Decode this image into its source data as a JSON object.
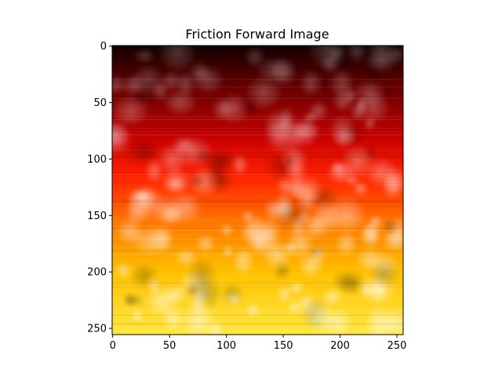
{
  "chart_data": {
    "type": "heatmap",
    "title": "Friction Forward Image",
    "xlabel": "",
    "ylabel": "",
    "colormap": "hot",
    "image_size": [
      256,
      256
    ],
    "xlim": [
      0,
      255
    ],
    "ylim": [
      255,
      0
    ],
    "x_ticks": [
      0,
      50,
      100,
      150,
      200,
      250
    ],
    "y_ticks": [
      0,
      50,
      100,
      150,
      200,
      250
    ],
    "grid": false,
    "colors": {
      "dark": "#1a0000",
      "red": "#e00000",
      "orange": "#ff8800",
      "yellow": "#ffff40"
    }
  }
}
